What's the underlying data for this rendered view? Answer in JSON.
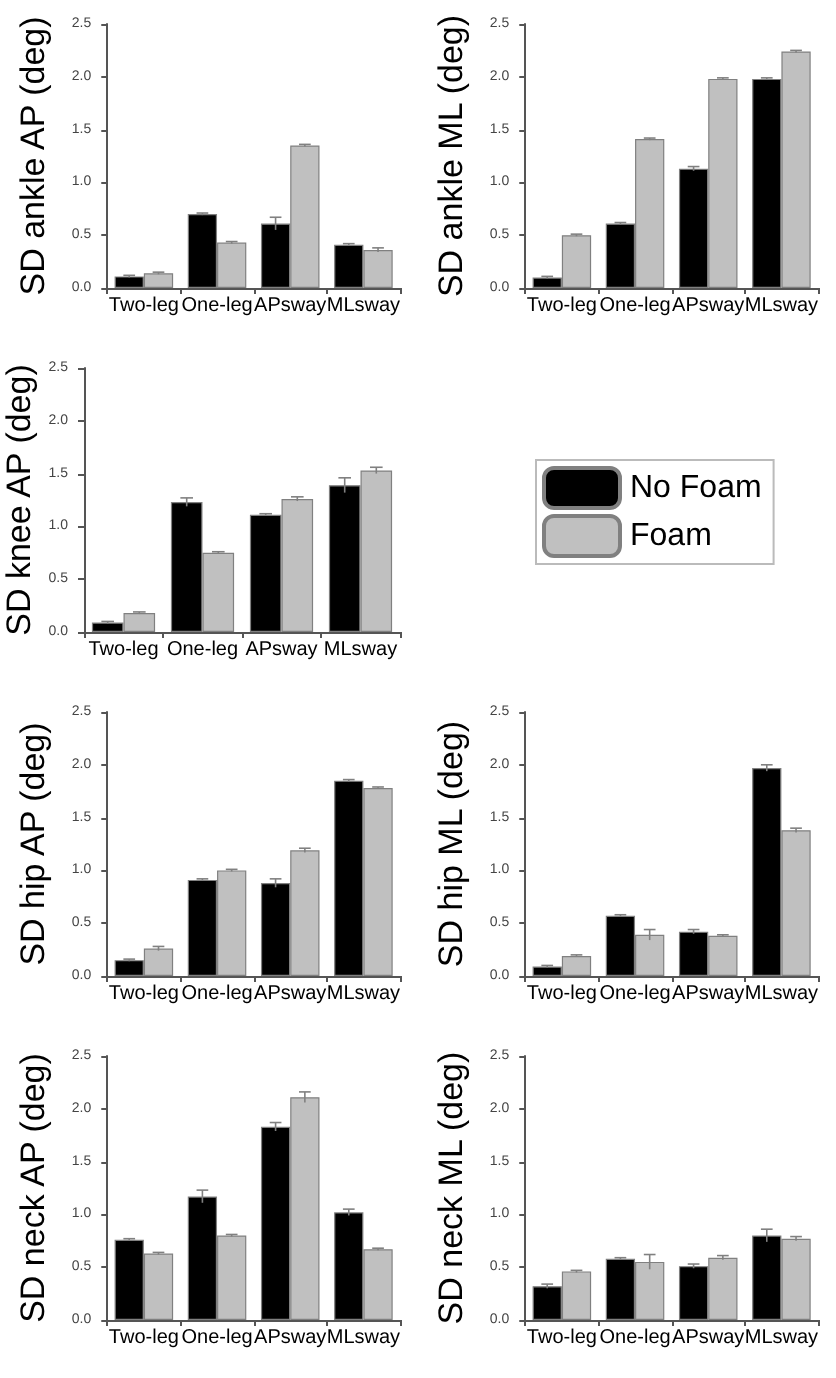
{
  "chart_data": [
    {
      "type": "bar",
      "ylabel": "SD ankle AP (deg)",
      "categories": [
        "Two-leg",
        "One-leg",
        "APsway",
        "MLsway"
      ],
      "ylim": [
        0,
        2.5
      ],
      "yticks": [
        {
          "value": 0,
          "label": "0.0"
        },
        {
          "value": 0.5,
          "label": "0.5"
        },
        {
          "value": 1,
          "label": "1.0"
        },
        {
          "value": 1.5,
          "label": "1.5"
        },
        {
          "value": 2,
          "label": "2.0"
        },
        {
          "value": 2.5,
          "label": "2.5"
        }
      ],
      "series": [
        {
          "color": "#000000",
          "values": [
            0.11,
            0.7,
            0.61,
            0.41
          ],
          "errors": [
            0.01,
            0.01,
            0.06,
            0.01
          ]
        },
        {
          "color": "#c0c0c0",
          "values": [
            0.14,
            0.43,
            1.35,
            0.36
          ],
          "errors": [
            0.01,
            0.01,
            0.01,
            0.02
          ]
        }
      ]
    },
    {
      "type": "bar",
      "ylabel": "SD ankle ML (deg)",
      "categories": [
        "Two-leg",
        "One-leg",
        "APsway",
        "MLsway"
      ],
      "ylim": [
        0,
        2.5
      ],
      "yticks": [
        {
          "value": 0,
          "label": "0.0"
        },
        {
          "value": 0.5,
          "label": "0.5"
        },
        {
          "value": 1,
          "label": "1.0"
        },
        {
          "value": 1.5,
          "label": "1.5"
        },
        {
          "value": 2,
          "label": "2.0"
        },
        {
          "value": 2.5,
          "label": "2.5"
        }
      ],
      "series": [
        {
          "color": "#000000",
          "values": [
            0.1,
            0.61,
            1.13,
            1.98
          ],
          "errors": [
            0.01,
            0.01,
            0.02,
            0.01
          ]
        },
        {
          "color": "#c0c0c0",
          "values": [
            0.5,
            1.41,
            1.98,
            2.24
          ],
          "errors": [
            0.01,
            0.01,
            0.01,
            0.01
          ]
        }
      ]
    },
    {
      "type": "bar",
      "ylabel": "SD knee AP (deg)",
      "legend": "right",
      "categories": [
        "Two-leg",
        "One-leg",
        "APsway",
        "MLsway"
      ],
      "ylim": [
        0,
        2.5
      ],
      "yticks": [
        {
          "value": 0,
          "label": "0.0"
        },
        {
          "value": 0.5,
          "label": "0.5"
        },
        {
          "value": 1,
          "label": "1.0"
        },
        {
          "value": 1.5,
          "label": "1.5"
        },
        {
          "value": 2,
          "label": "2.0"
        },
        {
          "value": 2.5,
          "label": "2.5"
        }
      ],
      "series": [
        {
          "name": "No Foam",
          "color": "#000000",
          "values": [
            0.09,
            1.23,
            1.11,
            1.39
          ],
          "errors": [
            0.01,
            0.04,
            0.01,
            0.07
          ]
        },
        {
          "name": "Foam",
          "color": "#c0c0c0",
          "values": [
            0.18,
            0.75,
            1.26,
            1.53
          ],
          "errors": [
            0.01,
            0.01,
            0.02,
            0.03
          ]
        }
      ]
    },
    {
      "type": "bar",
      "ylabel": "SD hip AP (deg)",
      "categories": [
        "Two-leg",
        "One-leg",
        "APsway",
        "MLsway"
      ],
      "ylim": [
        0,
        2.5
      ],
      "yticks": [
        {
          "value": 0,
          "label": "0.0"
        },
        {
          "value": 0.5,
          "label": "0.5"
        },
        {
          "value": 1,
          "label": "1.0"
        },
        {
          "value": 1.5,
          "label": "1.5"
        },
        {
          "value": 2,
          "label": "2.0"
        },
        {
          "value": 2.5,
          "label": "2.5"
        }
      ],
      "series": [
        {
          "color": "#000000",
          "values": [
            0.15,
            0.91,
            0.88,
            1.85
          ],
          "errors": [
            0.01,
            0.01,
            0.04,
            0.01
          ]
        },
        {
          "color": "#c0c0c0",
          "values": [
            0.26,
            1.0,
            1.19,
            1.78
          ],
          "errors": [
            0.02,
            0.01,
            0.02,
            0.01
          ]
        }
      ]
    },
    {
      "type": "bar",
      "ylabel": "SD hip ML (deg)",
      "categories": [
        "Two-leg",
        "One-leg",
        "APsway",
        "MLsway"
      ],
      "ylim": [
        0,
        2.5
      ],
      "yticks": [
        {
          "value": 0,
          "label": "0.0"
        },
        {
          "value": 0.5,
          "label": "0.5"
        },
        {
          "value": 1,
          "label": "1.0"
        },
        {
          "value": 1.5,
          "label": "1.5"
        },
        {
          "value": 2,
          "label": "2.0"
        },
        {
          "value": 2.5,
          "label": "2.5"
        }
      ],
      "series": [
        {
          "color": "#000000",
          "values": [
            0.09,
            0.57,
            0.42,
            1.97
          ],
          "errors": [
            0.01,
            0.01,
            0.02,
            0.03
          ]
        },
        {
          "color": "#c0c0c0",
          "values": [
            0.19,
            0.39,
            0.38,
            1.38
          ],
          "errors": [
            0.01,
            0.05,
            0.01,
            0.02
          ]
        }
      ]
    },
    {
      "type": "bar",
      "ylabel": "SD neck AP (deg)",
      "categories": [
        "Two-leg",
        "One-leg",
        "APsway",
        "MLsway"
      ],
      "ylim": [
        0,
        2.5
      ],
      "yticks": [
        {
          "value": 0,
          "label": "0.0"
        },
        {
          "value": 0.5,
          "label": "0.5"
        },
        {
          "value": 1,
          "label": "1.0"
        },
        {
          "value": 1.5,
          "label": "1.5"
        },
        {
          "value": 2,
          "label": "2.0"
        },
        {
          "value": 2.5,
          "label": "2.5"
        }
      ],
      "series": [
        {
          "color": "#000000",
          "values": [
            0.76,
            1.17,
            1.83,
            1.02
          ],
          "errors": [
            0.01,
            0.06,
            0.04,
            0.03
          ]
        },
        {
          "color": "#c0c0c0",
          "values": [
            0.63,
            0.8,
            2.11,
            0.67
          ],
          "errors": [
            0.01,
            0.01,
            0.05,
            0.01
          ]
        }
      ]
    },
    {
      "type": "bar",
      "ylabel": "SD neck ML (deg)",
      "categories": [
        "Two-leg",
        "One-leg",
        "APsway",
        "MLsway"
      ],
      "ylim": [
        0,
        2.5
      ],
      "yticks": [
        {
          "value": 0,
          "label": "0.0"
        },
        {
          "value": 0.5,
          "label": "0.5"
        },
        {
          "value": 1,
          "label": "1.0"
        },
        {
          "value": 1.5,
          "label": "1.5"
        },
        {
          "value": 2,
          "label": "2.0"
        },
        {
          "value": 2.5,
          "label": "2.5"
        }
      ],
      "series": [
        {
          "color": "#000000",
          "values": [
            0.32,
            0.58,
            0.51,
            0.8
          ],
          "errors": [
            0.02,
            0.01,
            0.02,
            0.06
          ]
        },
        {
          "color": "#c0c0c0",
          "values": [
            0.46,
            0.55,
            0.59,
            0.77
          ],
          "errors": [
            0.01,
            0.07,
            0.02,
            0.02
          ]
        }
      ]
    }
  ]
}
